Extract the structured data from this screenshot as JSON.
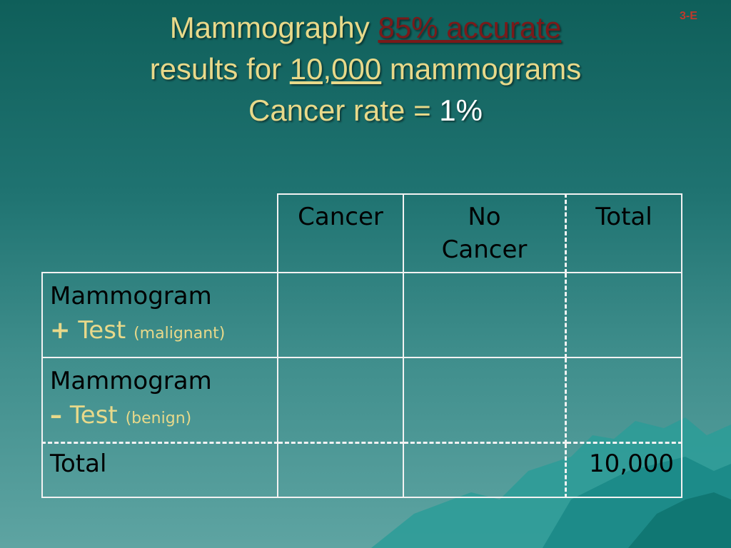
{
  "slide_number": "3-E",
  "title": {
    "line1_prefix": "Mammography",
    "line1_accent": "85% accurate",
    "line2_prefix": "results for",
    "line2_number": "10,000",
    "line2_suffix": "mammograms",
    "line3_prefix": "Cancer rate =",
    "line3_value": "1%"
  },
  "table": {
    "headers": [
      "Cancer",
      "No\nCancer",
      "Total"
    ],
    "rows": [
      {
        "label_line1": "Mammogram",
        "sign": "+",
        "test": "Test",
        "note": "(malignant)",
        "cells": [
          "",
          "",
          ""
        ]
      },
      {
        "label_line1": "Mammogram",
        "sign": "–",
        "test": "Test",
        "note": "(benign)",
        "cells": [
          "",
          "",
          ""
        ]
      }
    ],
    "total_row": {
      "label": "Total",
      "cells": [
        "",
        "",
        "10,000"
      ]
    }
  },
  "colors": {
    "title": "#e8d98a",
    "accent": "#7a1a1a",
    "slide_number": "#c0392b",
    "background": "#1f7371"
  }
}
